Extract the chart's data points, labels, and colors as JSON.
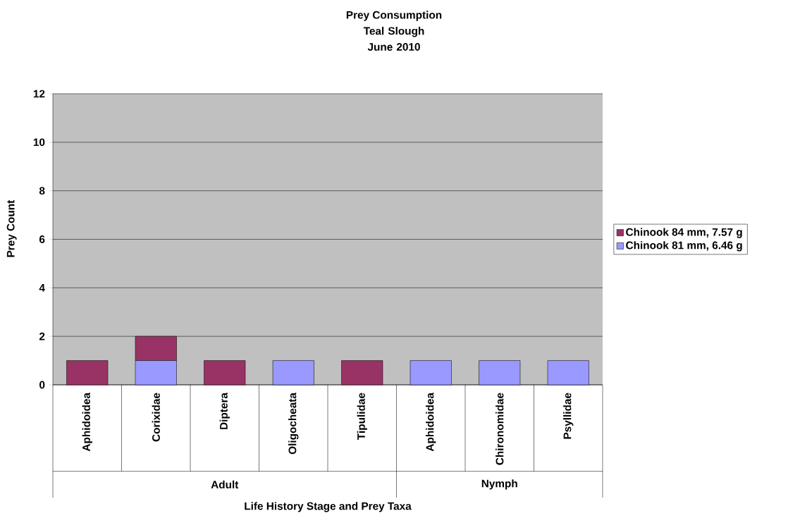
{
  "chart_data": {
    "type": "bar",
    "title": "Prey Consumption",
    "subtitle": "Teal Slough June 2010",
    "xlabel": "Life History Stage and Prey Taxa",
    "ylabel": "Prey Count",
    "categories": [
      "Aphidoidea",
      "Corixidae",
      "Diptera",
      "Oligocheata",
      "Tipulidae",
      "Aphidoidea",
      "Chironomidae",
      "Psyllidae"
    ],
    "annotations": [
      "Adult",
      "Nymph"
    ],
    "stacked": true,
    "series": [
      {
        "name": "Chinook 81 mm, 6.46 g",
        "color": "#9999ff",
        "values": [
          0,
          1,
          0,
          1,
          0,
          1,
          1,
          1
        ]
      },
      {
        "name": "Chinook 84 mm, 7.57 g",
        "color": "#993366",
        "values": [
          1,
          1,
          1,
          0,
          1,
          0,
          0,
          0
        ]
      }
    ],
    "ylim": [
      0,
      12
    ],
    "yticks": [
      0,
      2,
      4,
      6,
      8,
      10,
      12
    ],
    "grid": "y",
    "legend": "right"
  }
}
